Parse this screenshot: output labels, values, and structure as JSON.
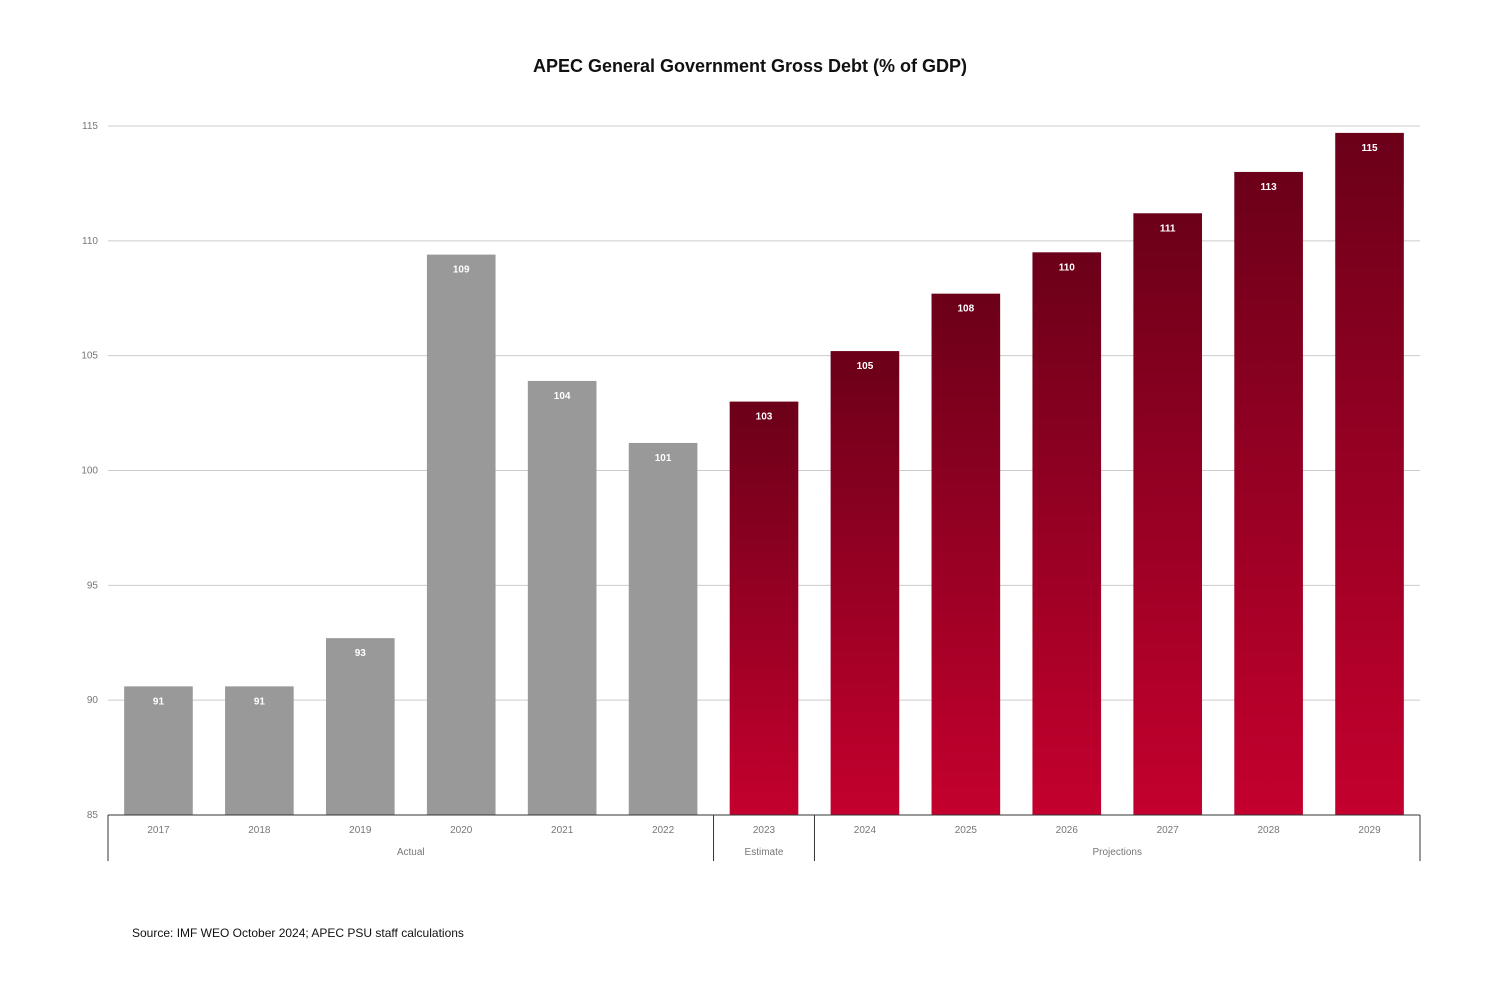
{
  "chart_data": {
    "type": "bar",
    "title": "APEC General Government Gross Debt (% of GDP)",
    "categories": [
      "2017",
      "2018",
      "2019",
      "2020",
      "2021",
      "2022",
      "2023",
      "2024",
      "2025",
      "2026",
      "2027",
      "2028",
      "2029"
    ],
    "values": [
      90.6,
      90.6,
      92.7,
      109.4,
      103.9,
      101.2,
      103.0,
      105.2,
      107.7,
      109.5,
      111.2,
      113.0,
      114.7
    ],
    "data_labels": [
      "91",
      "91",
      "93",
      "109",
      "104",
      "101",
      "103",
      "105",
      "108",
      "110",
      "111",
      "113",
      "115"
    ],
    "groups": [
      {
        "label": "Actual",
        "categories": [
          "2017",
          "2018",
          "2019",
          "2020",
          "2021",
          "2022"
        ],
        "color": "#999999"
      },
      {
        "label": "Estimate",
        "categories": [
          "2023"
        ],
        "color": "gradient-crimson"
      },
      {
        "label": "Projections",
        "categories": [
          "2024",
          "2025",
          "2026",
          "2027",
          "2028",
          "2029"
        ],
        "color": "gradient-crimson"
      }
    ],
    "ylim": [
      85,
      115
    ],
    "yticks": [
      85,
      90,
      95,
      100,
      105,
      110,
      115
    ],
    "xlabel": "",
    "ylabel": "",
    "grid": true,
    "legend": "none",
    "colors": {
      "actual": "#999999",
      "gradient_top": "#6b0019",
      "gradient_bottom": "#c4002e",
      "gridline": "#cccccc",
      "axis": "#333333",
      "tick_text": "#777777"
    }
  },
  "source": "Source: IMF WEO October 2024; APEC PSU staff calculations"
}
